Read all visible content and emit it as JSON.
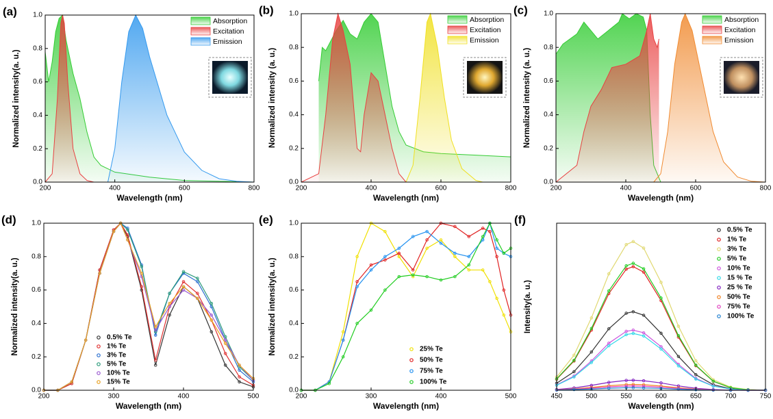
{
  "chart_data": [
    {
      "type": "area",
      "label": "(a)",
      "x_label": "Wavelength (nm)",
      "y_label": "Normalized intensity(a. u.)",
      "xlim": [
        200,
        800
      ],
      "xticks": [
        200,
        400,
        600,
        800
      ],
      "ylim": [
        0,
        1
      ],
      "yticks": [
        {
          "value": 0,
          "label": "0.0"
        },
        0.2,
        0.4,
        0.6,
        0.8,
        {
          "value": 1,
          "label": "1.0"
        }
      ],
      "legend": "upper right",
      "series": [
        {
          "name": "Absorption",
          "color": "#33cc33",
          "x": [
            200,
            210,
            220,
            230,
            240,
            250,
            260,
            280,
            300,
            320,
            340,
            360,
            400,
            500,
            600,
            700,
            800
          ],
          "values": [
            0.78,
            0.6,
            0.72,
            0.9,
            0.98,
            1.0,
            0.85,
            0.65,
            0.5,
            0.3,
            0.15,
            0.1,
            0.06,
            0.03,
            0.01,
            0.005,
            0
          ]
        },
        {
          "name": "Excitation",
          "color": "#e84040",
          "x": [
            200,
            220,
            235,
            245,
            250,
            255,
            265,
            280,
            300,
            320,
            340
          ],
          "values": [
            0,
            0.05,
            0.5,
            0.95,
            1.0,
            0.95,
            0.6,
            0.2,
            0.05,
            0.01,
            0
          ]
        },
        {
          "name": "Emission",
          "color": "#3399ee",
          "x": [
            380,
            400,
            420,
            440,
            460,
            480,
            500,
            550,
            600,
            650,
            700,
            750,
            800
          ],
          "values": [
            0,
            0.2,
            0.6,
            0.9,
            1.0,
            0.92,
            0.75,
            0.4,
            0.18,
            0.07,
            0.02,
            0.005,
            0
          ]
        }
      ]
    },
    {
      "type": "area",
      "label": "(b)",
      "x_label": "Wavelength (nm)",
      "y_label": "Normalized intensity (a. u.)",
      "xlim": [
        200,
        800
      ],
      "xticks": [
        200,
        400,
        600,
        800
      ],
      "ylim": [
        0,
        1
      ],
      "yticks": [
        {
          "value": 0,
          "label": "0.0"
        },
        0.2,
        0.4,
        0.6,
        0.8,
        {
          "value": 1,
          "label": "1.0"
        }
      ],
      "legend": "upper right",
      "series": [
        {
          "name": "Absorption",
          "color": "#33cc33",
          "x": [
            250,
            260,
            270,
            280,
            300,
            320,
            340,
            360,
            380,
            400,
            420,
            440,
            460,
            480,
            500,
            550,
            600,
            700,
            800
          ],
          "values": [
            0.6,
            0.8,
            0.78,
            0.82,
            0.9,
            0.96,
            0.88,
            0.85,
            0.95,
            1.0,
            0.95,
            0.7,
            0.45,
            0.3,
            0.22,
            0.18,
            0.17,
            0.16,
            0.15
          ]
        },
        {
          "name": "Excitation",
          "color": "#e84040",
          "x": [
            200,
            250,
            270,
            290,
            305,
            320,
            340,
            360,
            370,
            380,
            400,
            420,
            440,
            460,
            480,
            500
          ],
          "values": [
            0,
            0.05,
            0.4,
            0.85,
            1.0,
            0.9,
            0.7,
            0.2,
            0.18,
            0.4,
            0.65,
            0.6,
            0.4,
            0.2,
            0.05,
            0
          ]
        },
        {
          "name": "Emission",
          "color": "#f0e020",
          "x": [
            500,
            520,
            540,
            560,
            570,
            590,
            610,
            630,
            660,
            700,
            720
          ],
          "values": [
            0,
            0.1,
            0.5,
            0.95,
            1.0,
            0.8,
            0.5,
            0.25,
            0.08,
            0.01,
            0
          ]
        }
      ]
    },
    {
      "type": "area",
      "label": "(c)",
      "x_label": "Wavelength (nm)",
      "y_label": "Normalized intensity (a. u.)",
      "xlim": [
        200,
        800
      ],
      "xticks": [
        200,
        400,
        600,
        800
      ],
      "ylim": [
        0,
        1
      ],
      "yticks": [
        {
          "value": 0,
          "label": "0.0"
        },
        0.2,
        0.4,
        0.6,
        0.8,
        {
          "value": 1,
          "label": "1.0"
        }
      ],
      "legend": "upper right",
      "series": [
        {
          "name": "Absorption",
          "color": "#33cc33",
          "x": [
            200,
            220,
            260,
            280,
            300,
            320,
            350,
            380,
            390,
            410,
            430,
            450,
            460,
            470,
            480,
            500
          ],
          "values": [
            0.76,
            0.82,
            0.88,
            0.95,
            0.9,
            0.85,
            0.9,
            0.95,
            1.0,
            0.97,
            1.0,
            0.98,
            0.9,
            0.4,
            0.1,
            0
          ]
        },
        {
          "name": "Excitation",
          "color": "#e84040",
          "x": [
            200,
            260,
            280,
            300,
            330,
            360,
            400,
            440,
            460,
            470,
            480,
            490,
            495
          ],
          "values": [
            0,
            0.1,
            0.3,
            0.45,
            0.55,
            0.68,
            0.7,
            0.75,
            0.9,
            1.0,
            0.85,
            0.8,
            0.85
          ]
        },
        {
          "name": "Emission",
          "color": "#f08a30",
          "x": [
            480,
            500,
            520,
            540,
            560,
            570,
            590,
            620,
            650,
            680,
            720,
            760,
            800
          ],
          "values": [
            0,
            0.05,
            0.3,
            0.7,
            0.95,
            1.0,
            0.9,
            0.6,
            0.3,
            0.12,
            0.03,
            0.005,
            0
          ]
        }
      ]
    },
    {
      "type": "scatter",
      "label": "(d)",
      "x_label": "Wavelength (nm)",
      "y_label": "Normalized intensity(a. u.)",
      "xlim": [
        200,
        500
      ],
      "xticks": [
        200,
        300,
        400,
        500
      ],
      "ylim": [
        0,
        1
      ],
      "yticks": [
        {
          "value": 0,
          "label": "0.0"
        },
        0.2,
        0.4,
        0.6,
        0.8,
        {
          "value": 1,
          "label": "1.0"
        }
      ],
      "legend": "lower left",
      "x": [
        200,
        220,
        240,
        260,
        280,
        300,
        310,
        320,
        340,
        360,
        380,
        400,
        420,
        440,
        460,
        480,
        500
      ],
      "series": [
        {
          "name": "0.5% Te",
          "color": "#333333",
          "values": [
            0,
            0,
            0.04,
            0.3,
            0.72,
            0.96,
            1.0,
            0.92,
            0.6,
            0.15,
            0.45,
            0.62,
            0.55,
            0.35,
            0.15,
            0.05,
            0.02
          ]
        },
        {
          "name": "1% Te",
          "color": "#e03030",
          "values": [
            0,
            0,
            0.04,
            0.3,
            0.72,
            0.96,
            1.0,
            0.93,
            0.62,
            0.18,
            0.5,
            0.65,
            0.58,
            0.42,
            0.22,
            0.08,
            0.03
          ]
        },
        {
          "name": "3% Te",
          "color": "#2a6fd0",
          "values": [
            0,
            0,
            0.05,
            0.3,
            0.7,
            0.95,
            1.0,
            0.97,
            0.75,
            0.33,
            0.58,
            0.7,
            0.65,
            0.5,
            0.3,
            0.12,
            0.05
          ]
        },
        {
          "name": "5% Te",
          "color": "#2a9a7a",
          "values": [
            0,
            0,
            0.05,
            0.3,
            0.7,
            0.95,
            1.0,
            0.96,
            0.74,
            0.35,
            0.58,
            0.71,
            0.67,
            0.52,
            0.32,
            0.14,
            0.06
          ]
        },
        {
          "name": "10% Te",
          "color": "#9b59d0",
          "values": [
            0,
            0,
            0.05,
            0.3,
            0.7,
            0.95,
            1.0,
            0.9,
            0.68,
            0.36,
            0.5,
            0.6,
            0.55,
            0.45,
            0.3,
            0.15,
            0.06
          ]
        },
        {
          "name": "15% Te",
          "color": "#e8a020",
          "values": [
            0,
            0,
            0.05,
            0.3,
            0.7,
            0.95,
            1.0,
            0.9,
            0.7,
            0.38,
            0.52,
            0.62,
            0.55,
            0.42,
            0.28,
            0.15,
            0.07
          ]
        }
      ]
    },
    {
      "type": "scatter",
      "label": "(e)",
      "x_label": "Wavelength (nm)",
      "y_label": "Normalized intensity(a. u.)",
      "xlim": [
        200,
        500
      ],
      "xticks": [
        200,
        300,
        400,
        500
      ],
      "ylim": [
        0,
        1
      ],
      "yticks": [
        {
          "value": 0,
          "label": "0.0"
        },
        0.2,
        0.4,
        0.6,
        0.8,
        {
          "value": 1,
          "label": "1.0"
        }
      ],
      "legend": "lower center",
      "x": [
        200,
        220,
        240,
        260,
        280,
        300,
        320,
        340,
        360,
        380,
        400,
        420,
        440,
        460,
        470,
        480,
        490,
        500
      ],
      "series": [
        {
          "name": "25% Te",
          "color": "#f0e000",
          "values": [
            0,
            0,
            0.05,
            0.35,
            0.8,
            1.0,
            0.95,
            0.8,
            0.68,
            0.85,
            0.9,
            0.8,
            0.72,
            0.72,
            0.65,
            0.55,
            0.45,
            0.35
          ]
        },
        {
          "name": "50% Te",
          "color": "#e02020",
          "values": [
            0,
            0,
            0.05,
            0.3,
            0.65,
            0.75,
            0.78,
            0.82,
            0.72,
            0.9,
            1.0,
            0.98,
            0.92,
            0.97,
            0.95,
            0.8,
            0.6,
            0.45
          ]
        },
        {
          "name": "75% Te",
          "color": "#2090f0",
          "values": [
            0,
            0,
            0.05,
            0.3,
            0.62,
            0.72,
            0.8,
            0.85,
            0.92,
            0.95,
            0.88,
            0.82,
            0.8,
            0.9,
            1.0,
            0.85,
            0.82,
            0.8
          ]
        },
        {
          "name": "100% Te",
          "color": "#20cc20",
          "values": [
            0,
            0,
            0.04,
            0.2,
            0.4,
            0.48,
            0.6,
            0.68,
            0.69,
            0.68,
            0.66,
            0.68,
            0.75,
            0.92,
            1.0,
            0.9,
            0.82,
            0.85
          ]
        }
      ]
    },
    {
      "type": "scatter",
      "label": "(f)",
      "x_label": "Wavelength (nm)",
      "y_label": "Intensity(a. u.)",
      "xlim": [
        450,
        750
      ],
      "xticks": [
        450,
        500,
        550,
        600,
        650,
        700,
        750
      ],
      "ylim": [
        0,
        1
      ],
      "legend": "upper right",
      "x": [
        450,
        475,
        500,
        525,
        550,
        560,
        575,
        600,
        625,
        650,
        675,
        700,
        725,
        750
      ],
      "series": [
        {
          "name": "0.5% Te",
          "color": "#333333",
          "values": [
            0.042,
            0.111,
            0.229,
            0.368,
            0.461,
            0.47,
            0.449,
            0.341,
            0.202,
            0.093,
            0.033,
            0.009,
            0.002,
            0
          ]
        },
        {
          "name": "1% Te",
          "color": "#e02020",
          "values": [
            0.066,
            0.175,
            0.36,
            0.579,
            0.725,
            0.74,
            0.707,
            0.537,
            0.318,
            0.147,
            0.053,
            0.015,
            0.003,
            0.001
          ]
        },
        {
          "name": "3% Te",
          "color": "#e0d870",
          "values": [
            0.079,
            0.21,
            0.433,
            0.697,
            0.872,
            0.89,
            0.851,
            0.646,
            0.383,
            0.176,
            0.063,
            0.018,
            0.004,
            0.001
          ]
        },
        {
          "name": "5% Te",
          "color": "#20cc20",
          "values": [
            0.068,
            0.179,
            0.37,
            0.595,
            0.745,
            0.76,
            0.727,
            0.552,
            0.327,
            0.15,
            0.054,
            0.015,
            0.003,
            0.001
          ]
        },
        {
          "name": "10% Te",
          "color": "#cc55dd",
          "values": [
            0.032,
            0.085,
            0.175,
            0.282,
            0.353,
            0.36,
            0.344,
            0.261,
            0.155,
            0.071,
            0.026,
            0.007,
            0.001,
            0
          ]
        },
        {
          "name": "15 % Te",
          "color": "#30d8e8",
          "values": [
            0.03,
            0.08,
            0.166,
            0.266,
            0.333,
            0.34,
            0.325,
            0.247,
            0.146,
            0.067,
            0.024,
            0.007,
            0.001,
            0
          ]
        },
        {
          "name": "25 % Te",
          "color": "#8020c0",
          "values": [
            0.005,
            0.014,
            0.029,
            0.047,
            0.059,
            0.06,
            0.057,
            0.044,
            0.026,
            0.012,
            0.004,
            0.001,
            0,
            0
          ]
        },
        {
          "name": "50% Te",
          "color": "#f08020",
          "values": [
            0.003,
            0.008,
            0.017,
            0.027,
            0.034,
            0.035,
            0.033,
            0.025,
            0.015,
            0.007,
            0.002,
            0.001,
            0,
            0
          ]
        },
        {
          "name": "75% Te",
          "color": "#e040c0",
          "values": [
            0.002,
            0.006,
            0.012,
            0.02,
            0.025,
            0.025,
            0.024,
            0.018,
            0.011,
            0.005,
            0.002,
            0.001,
            0,
            0
          ]
        },
        {
          "name": "100% Te",
          "color": "#2080d0",
          "values": [
            0.001,
            0.004,
            0.007,
            0.012,
            0.015,
            0.015,
            0.014,
            0.011,
            0.006,
            0.003,
            0.001,
            0,
            0,
            0
          ]
        }
      ]
    }
  ]
}
